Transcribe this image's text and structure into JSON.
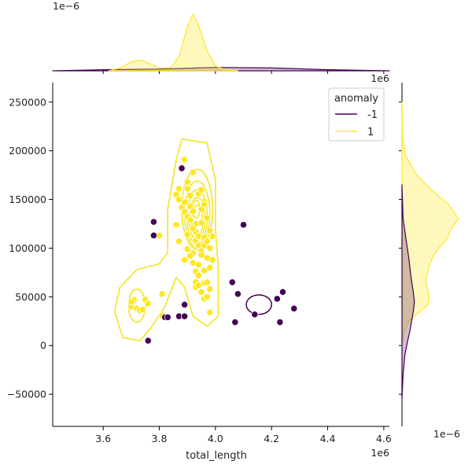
{
  "chart_data": {
    "type": "scatter",
    "joint": {
      "xlabel": "total_length",
      "ylabel": "",
      "x_offset_text": "1e6",
      "xlim": [
        3.42,
        4.62
      ],
      "ylim": [
        -83000,
        270000
      ],
      "xticks": [
        3.6,
        3.8,
        4.0,
        4.2,
        4.4,
        4.6
      ],
      "xtick_labels": [
        "3.6",
        "3.8",
        "4.0",
        "4.2",
        "4.4",
        "4.6"
      ],
      "yticks": [
        -50000,
        0,
        50000,
        100000,
        150000,
        200000,
        250000
      ],
      "ytick_labels": [
        "−50000",
        "0",
        "50000",
        "100000",
        "150000",
        "200000",
        "250000"
      ],
      "grid": false
    },
    "legend": {
      "title": "anomaly",
      "placement": "top-right",
      "entries": [
        {
          "label": "-1",
          "color": "#440154"
        },
        {
          "label": "1",
          "color": "#fde725"
        }
      ]
    },
    "colors": {
      "anomaly": "#440154",
      "normal": "#fde725",
      "normal_contour": "#f2e218",
      "normal_edge": "#ffffff"
    },
    "series": [
      {
        "name": "1",
        "color": "#fde725",
        "points": [
          [
            3.7,
            40000
          ],
          [
            3.71,
            47000
          ],
          [
            3.72,
            38000
          ],
          [
            3.73,
            36000
          ],
          [
            3.74,
            37000
          ],
          [
            3.75,
            47000
          ],
          [
            3.76,
            43000
          ],
          [
            3.7,
            45000
          ],
          [
            3.81,
            53000
          ],
          [
            3.81,
            31000
          ],
          [
            3.88,
            30000
          ],
          [
            3.98,
            34000
          ],
          [
            3.8,
            113000
          ],
          [
            3.86,
            155000
          ],
          [
            3.87,
            161000
          ],
          [
            3.87,
            150000
          ],
          [
            3.88,
            142000
          ],
          [
            3.86,
            124000
          ],
          [
            3.87,
            107000
          ],
          [
            3.88,
            183000
          ],
          [
            3.89,
            191000
          ],
          [
            3.89,
            147000
          ],
          [
            3.89,
            137000
          ],
          [
            3.9,
            168000
          ],
          [
            3.9,
            161000
          ],
          [
            3.9,
            132000
          ],
          [
            3.9,
            114000
          ],
          [
            3.9,
            99000
          ],
          [
            3.89,
            88000
          ],
          [
            3.91,
            129000
          ],
          [
            3.91,
            143000
          ],
          [
            3.91,
            154000
          ],
          [
            3.92,
            178000
          ],
          [
            3.92,
            138000
          ],
          [
            3.92,
            95000
          ],
          [
            3.92,
            85000
          ],
          [
            3.93,
            125000
          ],
          [
            3.93,
            117000
          ],
          [
            3.93,
            108000
          ],
          [
            3.93,
            76000
          ],
          [
            3.93,
            65000
          ],
          [
            3.93,
            60000
          ],
          [
            3.94,
            156000
          ],
          [
            3.94,
            112000
          ],
          [
            3.94,
            103000
          ],
          [
            3.94,
            62000
          ],
          [
            3.95,
            160000
          ],
          [
            3.95,
            126000
          ],
          [
            3.95,
            97000
          ],
          [
            3.95,
            93000
          ],
          [
            3.95,
            55000
          ],
          [
            3.96,
            148000
          ],
          [
            3.96,
            111000
          ],
          [
            3.96,
            103000
          ],
          [
            3.96,
            64000
          ],
          [
            3.96,
            48000
          ],
          [
            3.97,
            131000
          ],
          [
            3.97,
            107000
          ],
          [
            3.97,
            90000
          ],
          [
            3.97,
            65000
          ],
          [
            3.98,
            118000
          ],
          [
            3.98,
            100000
          ],
          [
            3.98,
            80000
          ],
          [
            3.99,
            112000
          ],
          [
            3.99,
            88000
          ],
          [
            3.97,
            50000
          ],
          [
            3.94,
            72000
          ],
          [
            3.95,
            140000
          ],
          [
            3.96,
            145000
          ],
          [
            3.92,
            120000
          ],
          [
            3.91,
            92000
          ],
          [
            3.94,
            83000
          ],
          [
            3.96,
            77000
          ],
          [
            3.98,
            58000
          ]
        ]
      },
      {
        "name": "-1",
        "color": "#440154",
        "points": [
          [
            3.76,
            5000
          ],
          [
            3.78,
            127000
          ],
          [
            3.78,
            113000
          ],
          [
            3.82,
            29000
          ],
          [
            3.83,
            29000
          ],
          [
            3.87,
            30000
          ],
          [
            3.88,
            182000
          ],
          [
            3.89,
            42000
          ],
          [
            3.89,
            30000
          ],
          [
            4.06,
            65000
          ],
          [
            4.07,
            24000
          ],
          [
            4.08,
            53000
          ],
          [
            4.1,
            124000
          ],
          [
            4.14,
            32000
          ],
          [
            4.22,
            48000
          ],
          [
            4.23,
            24000
          ],
          [
            4.24,
            55000
          ],
          [
            4.28,
            38000
          ]
        ]
      }
    ],
    "marginal_x": {
      "offset_text": "1e−6",
      "series": [
        {
          "name": "-1",
          "x": [
            3.42,
            3.6,
            3.8,
            4.0,
            4.2,
            4.4,
            4.62
          ],
          "density": [
            0,
            0.02,
            0.03,
            0.06,
            0.05,
            0.02,
            0
          ]
        },
        {
          "name": "1",
          "x": [
            3.62,
            3.66,
            3.7,
            3.73,
            3.76,
            3.8,
            3.84,
            3.87,
            3.9,
            3.92,
            3.94,
            3.97,
            4.0,
            4.04,
            4.08
          ],
          "density": [
            0,
            0.05,
            0.16,
            0.19,
            0.14,
            0.05,
            0.05,
            0.25,
            0.78,
            1.0,
            0.8,
            0.35,
            0.08,
            0.02,
            0
          ]
        }
      ]
    },
    "marginal_y": {
      "offset_text": "1e−6",
      "series": [
        {
          "name": "1",
          "y": [
            250000,
            215000,
            195000,
            175000,
            160000,
            145000,
            130000,
            120000,
            110000,
            100000,
            92000,
            80000,
            65000,
            52000,
            42000,
            35000,
            25000,
            12000,
            0
          ],
          "density": [
            0,
            0.01,
            0.06,
            0.26,
            0.52,
            0.82,
            1.0,
            0.87,
            0.8,
            0.65,
            0.55,
            0.47,
            0.42,
            0.48,
            0.46,
            0.32,
            0.12,
            0.03,
            0
          ]
        },
        {
          "name": "-1",
          "y": [
            165000,
            130000,
            110000,
            90000,
            70000,
            55000,
            45000,
            35000,
            25000,
            15000,
            5000,
            -10000,
            -30000,
            -55000
          ],
          "density": [
            0,
            0.02,
            0.07,
            0.12,
            0.16,
            0.2,
            0.22,
            0.2,
            0.17,
            0.14,
            0.1,
            0.05,
            0.02,
            0
          ]
        }
      ]
    }
  }
}
